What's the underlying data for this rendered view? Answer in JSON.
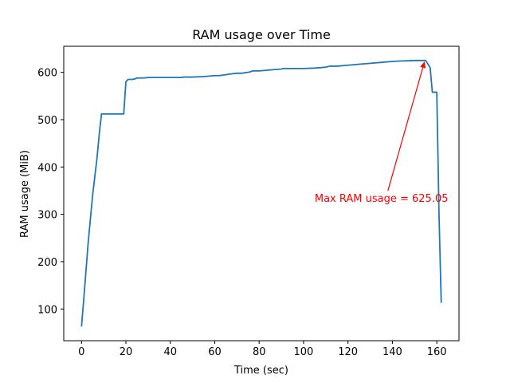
{
  "chart_data": {
    "type": "line",
    "title": "RAM usage over Time",
    "xlabel": "Time (sec)",
    "ylabel": "RAM usage (MiB)",
    "xlim": [
      -8,
      170
    ],
    "ylim": [
      33,
      655
    ],
    "xticks": [
      0,
      20,
      40,
      60,
      80,
      100,
      120,
      140,
      160
    ],
    "yticks": [
      100,
      200,
      300,
      400,
      500,
      600
    ],
    "grid": false,
    "series": [
      {
        "color": "#1f77b4",
        "x": [
          0,
          1,
          3,
          5,
          7,
          8,
          9,
          10,
          12,
          14,
          16,
          18,
          19,
          20,
          21,
          23,
          24,
          25,
          26,
          28,
          30,
          35,
          40,
          45,
          46,
          50,
          55,
          60,
          62,
          65,
          68,
          70,
          72,
          75,
          76,
          77,
          78,
          80,
          85,
          90,
          91,
          95,
          100,
          105,
          108,
          110,
          112,
          115,
          120,
          125,
          130,
          135,
          140,
          144,
          145,
          150,
          155,
          157,
          158,
          159,
          160,
          161,
          162
        ],
        "y": [
          63,
          120,
          240,
          340,
          420,
          470,
          512,
          512,
          512,
          512,
          512,
          512,
          512,
          580,
          585,
          585,
          586,
          588,
          588,
          588,
          589,
          589,
          589,
          589,
          590,
          590,
          591,
          593,
          593,
          595,
          597,
          598,
          598,
          600,
          601,
          603,
          603,
          603,
          605,
          607,
          608,
          608,
          608,
          609,
          610,
          611,
          613,
          613,
          615,
          617,
          619,
          621,
          623,
          624,
          624,
          625,
          625,
          610,
          558,
          558,
          558,
          300,
          113
        ]
      }
    ],
    "annotation": {
      "text": "Max RAM usage = 625.05",
      "color": "#ff0000",
      "point": [
        154.5,
        623
      ],
      "text_position": [
        105,
        326
      ]
    }
  }
}
